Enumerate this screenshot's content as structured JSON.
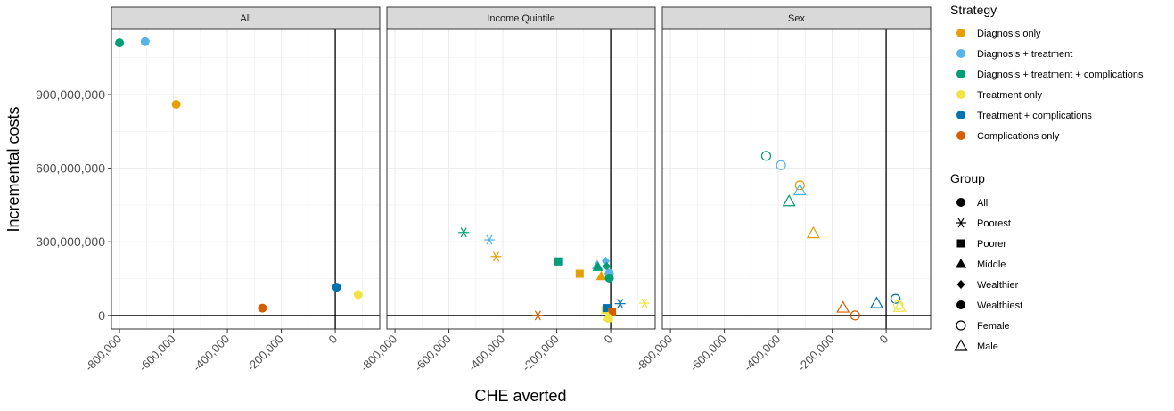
{
  "chart_data": {
    "type": "scatter",
    "xlabel": "CHE averted",
    "ylabel": "Incremental costs",
    "xlim": [
      -830000,
      165000
    ],
    "ylim": [
      -55000000,
      1165000000
    ],
    "x_ticks": [
      -800000,
      -600000,
      -400000,
      -200000,
      0
    ],
    "x_tick_labels": [
      "-800,000",
      "-600,000",
      "-400,000",
      "-200,000",
      "0"
    ],
    "y_ticks": [
      0,
      300000000,
      600000000,
      900000000
    ],
    "y_tick_labels": [
      "0",
      "300,000,000",
      "600,000,000",
      "900,000,000"
    ],
    "grid": true,
    "reference_lines": {
      "x": 0,
      "y": 0
    },
    "legend_position": "right",
    "facets": [
      "All",
      "Income Quintile",
      "Sex"
    ],
    "strategy_legend": {
      "title": "Strategy",
      "items": [
        {
          "label": "Diagnosis only",
          "color": "#E69F00"
        },
        {
          "label": "Diagnosis + treatment",
          "color": "#56B4E9"
        },
        {
          "label": "Diagnosis + treatment + complications",
          "color": "#009E73"
        },
        {
          "label": "Treatment only",
          "color": "#F0E442"
        },
        {
          "label": "Treatment + complications",
          "color": "#0072B2"
        },
        {
          "label": "Complications only",
          "color": "#D55E00"
        }
      ]
    },
    "group_legend": {
      "title": "Group",
      "items": [
        {
          "label": "All",
          "shape": "filled-circle"
        },
        {
          "label": "Poorest",
          "shape": "asterisk"
        },
        {
          "label": "Poorer",
          "shape": "filled-square"
        },
        {
          "label": "Middle",
          "shape": "filled-triangle"
        },
        {
          "label": "Wealthier",
          "shape": "filled-diamond"
        },
        {
          "label": "Wealthiest",
          "shape": "filled-circle"
        },
        {
          "label": "Female",
          "shape": "open-circle"
        },
        {
          "label": "Male",
          "shape": "open-triangle"
        }
      ]
    },
    "points": [
      {
        "facet": "All",
        "strategy": "Diagnosis + treatment + complications",
        "group": "All",
        "x": -800000,
        "y": 1110000000
      },
      {
        "facet": "All",
        "strategy": "Diagnosis + treatment",
        "group": "All",
        "x": -705000,
        "y": 1115000000
      },
      {
        "facet": "All",
        "strategy": "Diagnosis only",
        "group": "All",
        "x": -590000,
        "y": 860000000
      },
      {
        "facet": "All",
        "strategy": "Complications only",
        "group": "All",
        "x": -270000,
        "y": 30000000
      },
      {
        "facet": "All",
        "strategy": "Treatment + complications",
        "group": "All",
        "x": 5000,
        "y": 115000000
      },
      {
        "facet": "All",
        "strategy": "Treatment only",
        "group": "All",
        "x": 85000,
        "y": 85000000
      },
      {
        "facet": "Income Quintile",
        "strategy": "Diagnosis + treatment + complications",
        "group": "Poorest",
        "x": -545000,
        "y": 338000000
      },
      {
        "facet": "Income Quintile",
        "strategy": "Diagnosis + treatment",
        "group": "Poorest",
        "x": -450000,
        "y": 308000000
      },
      {
        "facet": "Income Quintile",
        "strategy": "Diagnosis only",
        "group": "Poorest",
        "x": -425000,
        "y": 240000000
      },
      {
        "facet": "Income Quintile",
        "strategy": "Complications only",
        "group": "Poorest",
        "x": -270000,
        "y": 0
      },
      {
        "facet": "Income Quintile",
        "strategy": "Treatment + complications",
        "group": "Poorest",
        "x": 35000,
        "y": 48000000
      },
      {
        "facet": "Income Quintile",
        "strategy": "Treatment only",
        "group": "Poorest",
        "x": 125000,
        "y": 50000000
      },
      {
        "facet": "Income Quintile",
        "strategy": "Diagnosis + treatment",
        "group": "Poorer",
        "x": -190000,
        "y": 220000000
      },
      {
        "facet": "Income Quintile",
        "strategy": "Diagnosis + treatment + complications",
        "group": "Poorer",
        "x": -195000,
        "y": 220000000
      },
      {
        "facet": "Income Quintile",
        "strategy": "Diagnosis only",
        "group": "Poorer",
        "x": -115000,
        "y": 170000000
      },
      {
        "facet": "Income Quintile",
        "strategy": "Treatment only",
        "group": "Poorer",
        "x": -20000,
        "y": 22000000
      },
      {
        "facet": "Income Quintile",
        "strategy": "Treatment + complications",
        "group": "Poorer",
        "x": -15000,
        "y": 30000000
      },
      {
        "facet": "Income Quintile",
        "strategy": "Complications only",
        "group": "Poorer",
        "x": 5000,
        "y": 15000000
      },
      {
        "facet": "Income Quintile",
        "strategy": "Diagnosis + treatment",
        "group": "Middle",
        "x": -50000,
        "y": 205000000
      },
      {
        "facet": "Income Quintile",
        "strategy": "Diagnosis + treatment + complications",
        "group": "Middle",
        "x": -48000,
        "y": 198000000
      },
      {
        "facet": "Income Quintile",
        "strategy": "Diagnosis only",
        "group": "Middle",
        "x": -35000,
        "y": 160000000
      },
      {
        "facet": "Income Quintile",
        "strategy": "Treatment only",
        "group": "Middle",
        "x": -10000,
        "y": -5000000
      },
      {
        "facet": "Income Quintile",
        "strategy": "Diagnosis + treatment",
        "group": "Wealthier",
        "x": -18000,
        "y": 222000000
      },
      {
        "facet": "Income Quintile",
        "strategy": "Diagnosis + treatment + complications",
        "group": "Wealthier",
        "x": -15000,
        "y": 200000000
      },
      {
        "facet": "Income Quintile",
        "strategy": "Diagnosis only",
        "group": "Wealthier",
        "x": -10000,
        "y": 170000000
      },
      {
        "facet": "Income Quintile",
        "strategy": "Treatment only",
        "group": "Wealthier",
        "x": -5000,
        "y": -10000000
      },
      {
        "facet": "Income Quintile",
        "strategy": "Diagnosis + treatment",
        "group": "Wealthiest",
        "x": -5000,
        "y": 172000000
      },
      {
        "facet": "Income Quintile",
        "strategy": "Diagnosis + treatment + complications",
        "group": "Wealthiest",
        "x": -5000,
        "y": 152000000
      },
      {
        "facet": "Income Quintile",
        "strategy": "Treatment only",
        "group": "Wealthiest",
        "x": -8000,
        "y": -12000000
      },
      {
        "facet": "Sex",
        "strategy": "Diagnosis + treatment + complications",
        "group": "Female",
        "x": -445000,
        "y": 650000000
      },
      {
        "facet": "Sex",
        "strategy": "Diagnosis + treatment",
        "group": "Female",
        "x": -390000,
        "y": 612000000
      },
      {
        "facet": "Sex",
        "strategy": "Diagnosis only",
        "group": "Female",
        "x": -320000,
        "y": 530000000
      },
      {
        "facet": "Sex",
        "strategy": "Diagnosis + treatment",
        "group": "Male",
        "x": -320000,
        "y": 510000000
      },
      {
        "facet": "Sex",
        "strategy": "Diagnosis + treatment + complications",
        "group": "Male",
        "x": -360000,
        "y": 465000000
      },
      {
        "facet": "Sex",
        "strategy": "Diagnosis only",
        "group": "Male",
        "x": -270000,
        "y": 335000000
      },
      {
        "facet": "Sex",
        "strategy": "Complications only",
        "group": "Male",
        "x": -160000,
        "y": 32000000
      },
      {
        "facet": "Sex",
        "strategy": "Complications only",
        "group": "Female",
        "x": -115000,
        "y": 0
      },
      {
        "facet": "Sex",
        "strategy": "Treatment + complications",
        "group": "Male",
        "x": -35000,
        "y": 50000000
      },
      {
        "facet": "Sex",
        "strategy": "Treatment + complications",
        "group": "Female",
        "x": 35000,
        "y": 68000000
      },
      {
        "facet": "Sex",
        "strategy": "Treatment only",
        "group": "Female",
        "x": 45000,
        "y": 42000000
      },
      {
        "facet": "Sex",
        "strategy": "Treatment only",
        "group": "Male",
        "x": 50000,
        "y": 35000000
      }
    ]
  }
}
